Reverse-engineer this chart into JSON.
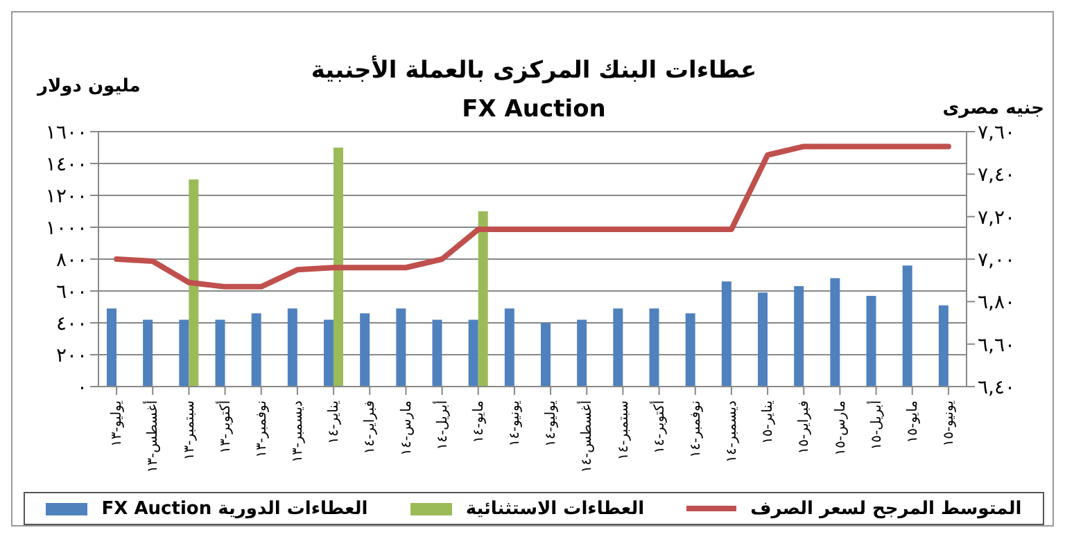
{
  "chart_data": {
    "type": "bar",
    "title": "عطاءات البنك المركزى بالعملة الأجنبية",
    "subtitle": "FX Auction",
    "ylabel": "مليون دولار",
    "y2label": "جنيه مصرى",
    "categories": [
      "يوليو-١٣",
      "أغسطس-١٣",
      "سبتمبر-١٣",
      "أكتوبر-١٣",
      "نوفمبر-١٣",
      "ديسمبر-١٣",
      "يناير-١٤",
      "فبراير-١٤",
      "مارس-١٤",
      "أبريل-١٤",
      "مايو-١٤",
      "يونيو-١٤",
      "يوليو-١٤",
      "أغسطس-١٤",
      "سبتمبر-١٤",
      "أكتوبر-١٤",
      "نوفمبر-١٤",
      "ديسمبر-١٤",
      "يناير-١٥",
      "فبراير-١٥",
      "مارس-١٥",
      "أبريل-١٥",
      "مايو-١٥",
      "يونيو-١٥"
    ],
    "series": [
      {
        "name": "العطاءات الدورية FX Auction",
        "color": "#4f81bd",
        "values": [
          490,
          420,
          420,
          420,
          460,
          490,
          420,
          460,
          490,
          420,
          420,
          490,
          400,
          420,
          490,
          490,
          460,
          660,
          590,
          630,
          680,
          570,
          760,
          510
        ]
      },
      {
        "name": "العطاءات الاستثنائية",
        "color": "#9bbb59",
        "values": [
          null,
          null,
          1300,
          null,
          null,
          null,
          1500,
          null,
          null,
          null,
          1100,
          null,
          null,
          null,
          null,
          null,
          null,
          null,
          null,
          null,
          null,
          null,
          null,
          null
        ]
      },
      {
        "name": "المتوسط المرجح لسعر الصرف",
        "type": "line",
        "axis": "y2",
        "color": "#c0504d",
        "values": [
          7.0,
          6.99,
          6.89,
          6.87,
          6.87,
          6.95,
          6.96,
          6.96,
          6.96,
          7.0,
          7.14,
          7.14,
          7.14,
          7.14,
          7.14,
          7.14,
          7.14,
          7.14,
          7.49,
          7.53,
          7.53,
          7.53,
          7.53,
          7.53
        ]
      }
    ],
    "ylim": [
      0,
      1600
    ],
    "yticks": [
      {
        "value": 0,
        "label": "٠"
      },
      {
        "value": 200,
        "label": "٢٠٠"
      },
      {
        "value": 400,
        "label": "٤٠٠"
      },
      {
        "value": 600,
        "label": "٦٠٠"
      },
      {
        "value": 800,
        "label": "٨٠٠"
      },
      {
        "value": 1000,
        "label": "١٠٠٠"
      },
      {
        "value": 1200,
        "label": "١٢٠٠"
      },
      {
        "value": 1400,
        "label": "١٤٠٠"
      },
      {
        "value": 1600,
        "label": "١٦٠٠"
      }
    ],
    "y2lim": [
      6.4,
      7.6
    ],
    "y2ticks": [
      {
        "value": 6.4,
        "label": "٦,٤٠"
      },
      {
        "value": 6.6,
        "label": "٦,٦٠"
      },
      {
        "value": 6.8,
        "label": "٦,٨٠"
      },
      {
        "value": 7.0,
        "label": "٧,٠٠"
      },
      {
        "value": 7.2,
        "label": "٧,٢٠"
      },
      {
        "value": 7.4,
        "label": "٧,٤٠"
      },
      {
        "value": 7.6,
        "label": "٧,٦٠"
      }
    ],
    "grid": "y",
    "legend": "bottom"
  }
}
